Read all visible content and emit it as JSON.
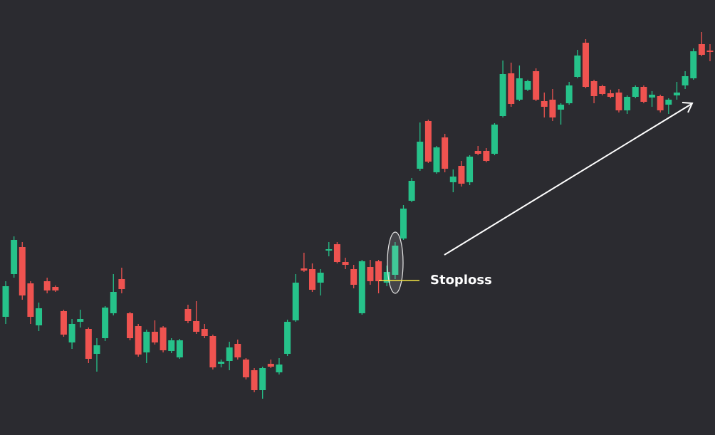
{
  "chart_data": {
    "type": "candlestick",
    "up_color": "#26c28a",
    "down_color": "#ef5350",
    "background": "#2b2b30",
    "ylim": [
      0,
      611
    ],
    "open": [
      166,
      226,
      264,
      213,
      154,
      216,
      208,
      174,
      130,
      159,
      149,
      114,
      136,
      171,
      219,
      171,
      153,
      116,
      145,
      151,
      118,
      109,
      177,
      160,
      149,
      139,
      100,
      104,
      128,
      106,
      91,
      63,
      100,
      88,
      114,
      161,
      234,
      233,
      214,
      259,
      268,
      243,
      233,
      171,
      236,
      244,
      214,
      225,
      276,
      329,
      374,
      441,
      369,
      418,
      355,
      378,
      355,
      399,
      399,
      395,
      448,
      508,
      471,
      485,
      511,
      469,
      471,
      457,
      466,
      503,
      551,
      497,
      490,
      480,
      481,
      456,
      475,
      489,
      474,
      476,
      464,
      477,
      491,
      501,
      549,
      540
    ],
    "high": [
      216,
      279,
      271,
      216,
      186,
      221,
      210,
      176,
      163,
      176,
      151,
      136,
      181,
      226,
      235,
      173,
      156,
      148,
      161,
      153,
      136,
      135,
      183,
      188,
      156,
      141,
      106,
      131,
      134,
      108,
      94,
      96,
      106,
      108,
      162,
      226,
      256,
      241,
      233,
      271,
      271,
      249,
      239,
      246,
      246,
      246,
      238,
      271,
      323,
      361,
      439,
      443,
      406,
      423,
      373,
      385,
      393,
      406,
      403,
      438,
      526,
      523,
      519,
      499,
      515,
      481,
      486,
      466,
      496,
      541,
      556,
      499,
      492,
      485,
      486,
      477,
      491,
      491,
      483,
      478,
      473,
      496,
      511,
      543,
      566,
      549
    ],
    "low": [
      156,
      221,
      190,
      156,
      146,
      199,
      201,
      138,
      121,
      151,
      101,
      89,
      132,
      168,
      199,
      133,
      110,
      101,
      127,
      116,
      115,
      107,
      157,
      142,
      136,
      92,
      95,
      91,
      106,
      78,
      60,
      51,
      94,
      85,
      111,
      159,
      229,
      201,
      196,
      251,
      241,
      233,
      206,
      169,
      211,
      199,
      209,
      219,
      274,
      327,
      371,
      382,
      367,
      369,
      341,
      349,
      351,
      393,
      383,
      393,
      446,
      461,
      469,
      483,
      469,
      446,
      441,
      436,
      464,
      501,
      487,
      466,
      477,
      473,
      453,
      451,
      473,
      466,
      461,
      453,
      451,
      471,
      486,
      499,
      532,
      525
    ],
    "close": [
      209,
      274,
      196,
      166,
      178,
      203,
      203,
      141,
      156,
      163,
      107,
      126,
      179,
      201,
      205,
      136,
      113,
      145,
      130,
      119,
      133,
      133,
      160,
      145,
      139,
      95,
      103,
      123,
      109,
      81,
      63,
      94,
      96,
      99,
      159,
      214,
      231,
      204,
      228,
      261,
      243,
      239,
      211,
      244,
      216,
      216,
      229,
      266,
      318,
      357,
      412,
      384,
      404,
      374,
      363,
      353,
      391,
      395,
      385,
      436,
      507,
      465,
      501,
      497,
      471,
      461,
      446,
      464,
      491,
      533,
      489,
      476,
      479,
      475,
      456,
      475,
      489,
      468,
      478,
      456,
      471,
      481,
      504,
      539,
      534,
      538
    ],
    "stoploss_level": 217,
    "annotation": "Stoploss"
  }
}
